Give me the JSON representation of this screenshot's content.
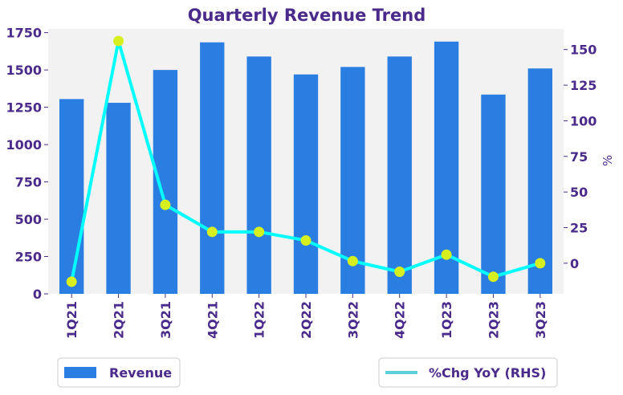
{
  "chart_data": {
    "type": "bar",
    "title": "Quarterly Revenue Trend",
    "categories": [
      "1Q21",
      "2Q21",
      "3Q21",
      "4Q21",
      "1Q22",
      "2Q22",
      "3Q22",
      "4Q22",
      "1Q23",
      "2Q23",
      "3Q23"
    ],
    "series": [
      {
        "name": "Revenue",
        "kind": "bar",
        "axis": "left",
        "color": "#2a7de1",
        "values": [
          1305,
          1280,
          1500,
          1685,
          1590,
          1470,
          1520,
          1590,
          1690,
          1335,
          1510
        ]
      },
      {
        "name": "%Chg YoY (RHS)",
        "kind": "line",
        "axis": "right",
        "color": "#00ffff",
        "marker_color": "#d6ef1e",
        "values": [
          -13,
          156,
          41,
          22,
          22,
          16,
          1.5,
          -6,
          6,
          -9.5,
          0
        ]
      }
    ],
    "y_left": {
      "ylim": [
        0,
        1775
      ],
      "ticks": [
        0,
        250,
        500,
        750,
        1000,
        1250,
        1500,
        1750
      ],
      "label": ""
    },
    "y_right": {
      "ylim": [
        -21.5,
        164.5
      ],
      "ticks": [
        0,
        25,
        50,
        75,
        100,
        125,
        150
      ],
      "label": "%"
    },
    "xlabel": "",
    "grid": false,
    "plot_background": "#f2f2f2",
    "legend": [
      {
        "label": "Revenue",
        "placement": "bottom-left"
      },
      {
        "label": "%Chg YoY (RHS)",
        "placement": "bottom-right"
      }
    ]
  }
}
